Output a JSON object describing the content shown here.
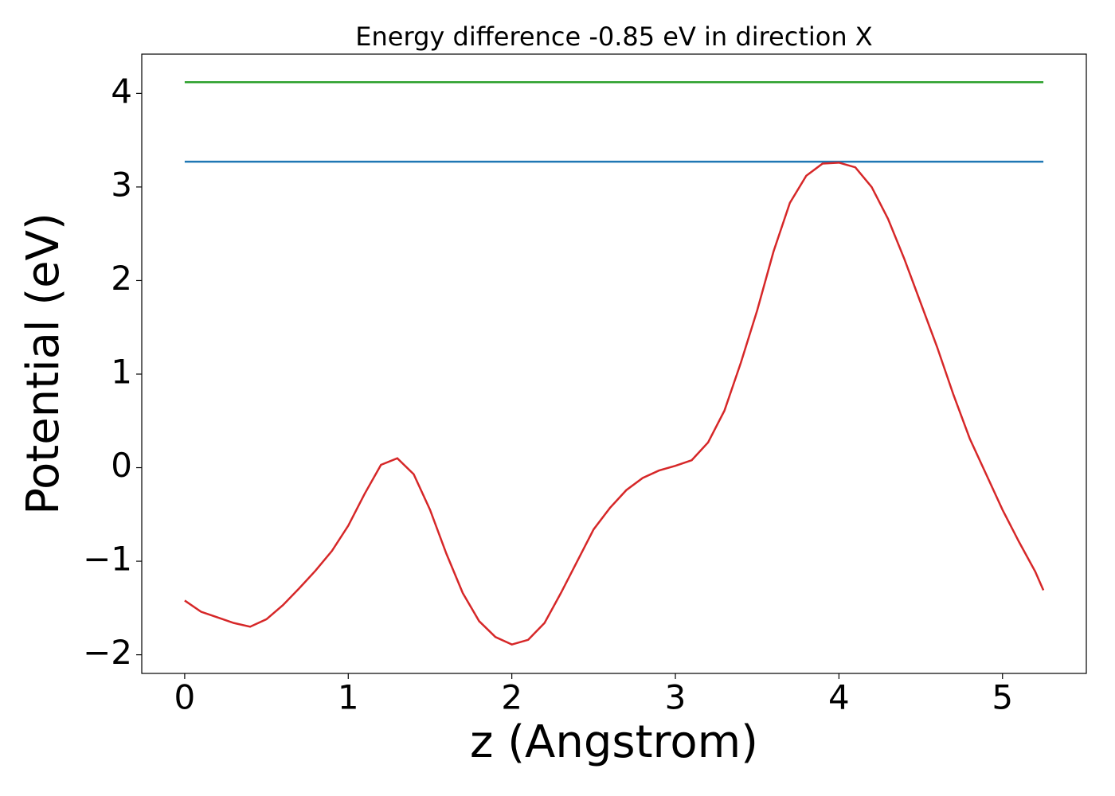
{
  "chart_data": {
    "type": "line",
    "title": "Energy difference -0.85 eV in direction X",
    "xlabel": "z (Angstrom)",
    "ylabel": "Potential (eV)",
    "xlim": [
      -0.2625,
      5.5125
    ],
    "ylim": [
      -2.199,
      4.42
    ],
    "xticks": [
      0,
      1,
      2,
      3,
      4,
      5
    ],
    "yticks": [
      {
        "value": -2,
        "label": "−2"
      },
      {
        "value": -1,
        "label": "−1"
      },
      0,
      1,
      2,
      3,
      4
    ],
    "grid": false,
    "series": [
      {
        "color": "#2ca02c",
        "x": [
          0,
          5.25
        ],
        "values": [
          4.12,
          4.12
        ]
      },
      {
        "color": "#1f77b4",
        "x": [
          0,
          5.25
        ],
        "values": [
          3.27,
          3.27
        ]
      },
      {
        "color": "#d62728",
        "x": [
          0,
          0.1,
          0.2,
          0.3,
          0.4,
          0.5,
          0.6,
          0.7,
          0.8,
          0.9,
          1.0,
          1.1,
          1.2,
          1.3,
          1.4,
          1.5,
          1.6,
          1.7,
          1.8,
          1.9,
          2.0,
          2.1,
          2.2,
          2.3,
          2.4,
          2.5,
          2.6,
          2.7,
          2.8,
          2.9,
          3.0,
          3.1,
          3.2,
          3.3,
          3.4,
          3.5,
          3.6,
          3.7,
          3.8,
          3.9,
          4.0,
          4.1,
          4.2,
          4.3,
          4.4,
          4.5,
          4.6,
          4.7,
          4.8,
          4.9,
          5.0,
          5.1,
          5.2,
          5.25
        ],
        "values": [
          -1.42,
          -1.54,
          -1.6,
          -1.66,
          -1.7,
          -1.62,
          -1.47,
          -1.29,
          -1.1,
          -0.89,
          -0.62,
          -0.28,
          0.03,
          0.1,
          -0.07,
          -0.45,
          -0.92,
          -1.34,
          -1.64,
          -1.81,
          -1.89,
          -1.84,
          -1.66,
          -1.34,
          -1.0,
          -0.66,
          -0.43,
          -0.24,
          -0.11,
          -0.03,
          0.02,
          0.08,
          0.27,
          0.61,
          1.12,
          1.68,
          2.31,
          2.83,
          3.12,
          3.25,
          3.26,
          3.21,
          3.0,
          2.66,
          2.23,
          1.76,
          1.29,
          0.78,
          0.31,
          -0.07,
          -0.45,
          -0.79,
          -1.11,
          -1.31
        ]
      }
    ]
  }
}
